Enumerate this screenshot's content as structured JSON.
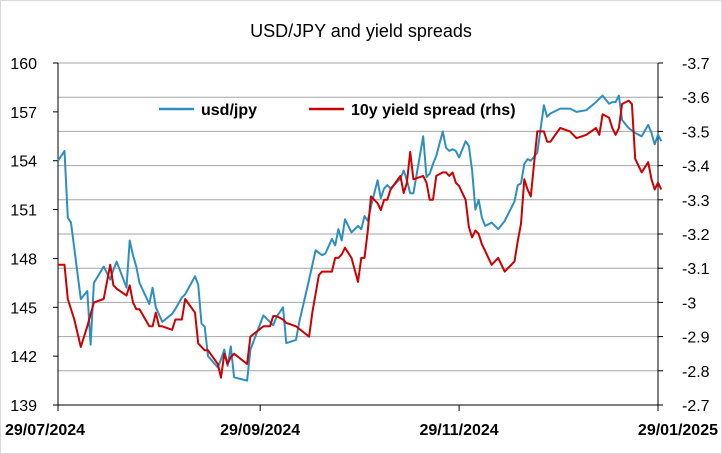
{
  "chart_data": {
    "type": "line",
    "title": "USD/JPY and yield spreads",
    "xlabel": "",
    "ylabel": "",
    "x_tick_labels": [
      "29/07/2024",
      "29/09/2024",
      "29/11/2024",
      "29/01/2025"
    ],
    "x_range": [
      "2024-07-29",
      "2025-01-29"
    ],
    "left_axis": {
      "min": 139,
      "max": 160,
      "ticks": [
        139,
        142,
        145,
        148,
        151,
        154,
        157,
        160
      ]
    },
    "right_axis": {
      "min": -2.7,
      "max": -3.7,
      "reversed": true,
      "ticks": [
        "-2.7",
        "-2.8",
        "-2.9",
        "-3",
        "-3.1",
        "-3.2",
        "-3.3",
        "-3.4",
        "-3.5",
        "-3.6",
        "-3.7"
      ]
    },
    "grid": "horizontal",
    "legend_position": "top",
    "series": [
      {
        "name": "usd/jpy",
        "axis": "left",
        "color": "#2e8fbf",
        "points": [
          [
            "2024-07-29",
            154.0
          ],
          [
            "2024-07-31",
            154.6
          ],
          [
            "2024-08-01",
            150.5
          ],
          [
            "2024-08-02",
            150.2
          ],
          [
            "2024-08-05",
            145.5
          ],
          [
            "2024-08-07",
            146.0
          ],
          [
            "2024-08-08",
            142.7
          ],
          [
            "2024-08-09",
            146.5
          ],
          [
            "2024-08-12",
            147.5
          ],
          [
            "2024-08-14",
            146.7
          ],
          [
            "2024-08-15",
            147.3
          ],
          [
            "2024-08-16",
            147.8
          ],
          [
            "2024-08-19",
            146.2
          ],
          [
            "2024-08-20",
            149.1
          ],
          [
            "2024-08-21",
            148.2
          ],
          [
            "2024-08-22",
            147.5
          ],
          [
            "2024-08-23",
            146.5
          ],
          [
            "2024-08-26",
            145.2
          ],
          [
            "2024-08-27",
            146.2
          ],
          [
            "2024-08-28",
            145.0
          ],
          [
            "2024-08-30",
            144.1
          ],
          [
            "2024-09-02",
            144.6
          ],
          [
            "2024-09-03",
            144.9
          ],
          [
            "2024-09-05",
            145.6
          ],
          [
            "2024-09-06",
            145.8
          ],
          [
            "2024-09-09",
            146.9
          ],
          [
            "2024-09-10",
            146.4
          ],
          [
            "2024-09-11",
            144.0
          ],
          [
            "2024-09-12",
            143.8
          ],
          [
            "2024-09-13",
            142.0
          ],
          [
            "2024-09-16",
            141.3
          ],
          [
            "2024-09-17",
            141.8
          ],
          [
            "2024-09-18",
            142.4
          ],
          [
            "2024-09-19",
            141.4
          ],
          [
            "2024-09-20",
            142.6
          ],
          [
            "2024-09-21",
            140.7
          ],
          [
            "2024-09-25",
            140.5
          ],
          [
            "2024-09-26",
            142.4
          ],
          [
            "2024-09-30",
            144.5
          ],
          [
            "2024-10-02",
            144.1
          ],
          [
            "2024-10-03",
            143.9
          ],
          [
            "2024-10-04",
            144.4
          ],
          [
            "2024-10-06",
            145.0
          ],
          [
            "2024-10-07",
            142.8
          ],
          [
            "2024-10-10",
            143.0
          ],
          [
            "2024-10-11",
            144.1
          ],
          [
            "2024-10-14",
            146.7
          ],
          [
            "2024-10-16",
            148.5
          ],
          [
            "2024-10-18",
            148.2
          ],
          [
            "2024-10-19",
            148.3
          ],
          [
            "2024-10-21",
            149.2
          ],
          [
            "2024-10-22",
            148.8
          ],
          [
            "2024-10-23",
            149.8
          ],
          [
            "2024-10-24",
            149.1
          ],
          [
            "2024-10-25",
            150.4
          ],
          [
            "2024-10-27",
            149.6
          ],
          [
            "2024-10-29",
            150.0
          ],
          [
            "2024-10-30",
            149.8
          ],
          [
            "2024-10-31",
            150.6
          ],
          [
            "2024-11-01",
            150.3
          ],
          [
            "2024-11-02",
            151.2
          ],
          [
            "2024-11-04",
            152.8
          ],
          [
            "2024-11-05",
            151.7
          ],
          [
            "2024-11-06",
            152.3
          ],
          [
            "2024-11-07",
            152.5
          ],
          [
            "2024-11-08",
            152.3
          ],
          [
            "2024-11-11",
            152.9
          ],
          [
            "2024-11-12",
            153.4
          ],
          [
            "2024-11-13",
            152.8
          ],
          [
            "2024-11-14",
            152.0
          ],
          [
            "2024-11-15",
            152.0
          ],
          [
            "2024-11-18",
            155.5
          ],
          [
            "2024-11-19",
            153.0
          ],
          [
            "2024-11-20",
            153.2
          ],
          [
            "2024-11-21",
            153.8
          ],
          [
            "2024-11-22",
            154.3
          ],
          [
            "2024-11-24",
            155.8
          ],
          [
            "2024-11-25",
            154.8
          ],
          [
            "2024-11-26",
            154.6
          ],
          [
            "2024-11-27",
            154.7
          ],
          [
            "2024-11-28",
            154.6
          ],
          [
            "2024-11-29",
            154.2
          ],
          [
            "2024-12-01",
            155.2
          ],
          [
            "2024-12-02",
            154.9
          ],
          [
            "2024-12-03",
            153.4
          ],
          [
            "2024-12-04",
            151.0
          ],
          [
            "2024-12-05",
            151.6
          ],
          [
            "2024-12-06",
            150.5
          ],
          [
            "2024-12-07",
            150.0
          ],
          [
            "2024-12-09",
            150.2
          ],
          [
            "2024-12-11",
            149.8
          ],
          [
            "2024-12-13",
            150.3
          ],
          [
            "2024-12-16",
            151.5
          ],
          [
            "2024-12-17",
            152.5
          ],
          [
            "2024-12-18",
            152.6
          ],
          [
            "2024-12-19",
            153.8
          ],
          [
            "2024-12-20",
            154.1
          ],
          [
            "2024-12-21",
            154.0
          ],
          [
            "2024-12-23",
            154.5
          ],
          [
            "2024-12-25",
            157.4
          ],
          [
            "2024-12-26",
            156.7
          ],
          [
            "2024-12-27",
            156.9
          ],
          [
            "2024-12-30",
            157.2
          ],
          [
            "2025-01-02",
            157.2
          ],
          [
            "2025-01-04",
            157.0
          ],
          [
            "2025-01-07",
            157.1
          ],
          [
            "2025-01-10",
            157.6
          ],
          [
            "2025-01-11",
            157.8
          ],
          [
            "2025-01-12",
            158.0
          ],
          [
            "2025-01-14",
            157.5
          ],
          [
            "2025-01-15",
            157.6
          ],
          [
            "2025-01-16",
            157.6
          ],
          [
            "2025-01-17",
            158.0
          ],
          [
            "2025-01-18",
            156.5
          ],
          [
            "2025-01-20",
            156.0
          ],
          [
            "2025-01-22",
            155.7
          ],
          [
            "2025-01-24",
            155.5
          ],
          [
            "2025-01-26",
            156.2
          ],
          [
            "2025-01-27",
            155.7
          ],
          [
            "2025-01-28",
            155.0
          ],
          [
            "2025-01-29",
            155.6
          ],
          [
            "2025-01-30",
            155.2
          ]
        ]
      },
      {
        "name": "10y yield spread (rhs)",
        "axis": "right",
        "color": "#cc0000",
        "points": [
          [
            "2024-07-29",
            -3.11
          ],
          [
            "2024-07-31",
            -3.11
          ],
          [
            "2024-08-01",
            -3.01
          ],
          [
            "2024-08-03",
            -2.95
          ],
          [
            "2024-08-05",
            -2.87
          ],
          [
            "2024-08-07",
            -2.93
          ],
          [
            "2024-08-09",
            -3.0
          ],
          [
            "2024-08-12",
            -3.01
          ],
          [
            "2024-08-14",
            -3.11
          ],
          [
            "2024-08-15",
            -3.05
          ],
          [
            "2024-08-16",
            -3.04
          ],
          [
            "2024-08-19",
            -3.02
          ],
          [
            "2024-08-20",
            -3.05
          ],
          [
            "2024-08-21",
            -3.0
          ],
          [
            "2024-08-22",
            -2.98
          ],
          [
            "2024-08-23",
            -2.98
          ],
          [
            "2024-08-26",
            -2.93
          ],
          [
            "2024-08-27",
            -2.93
          ],
          [
            "2024-08-28",
            -2.97
          ],
          [
            "2024-08-29",
            -2.93
          ],
          [
            "2024-08-30",
            -2.93
          ],
          [
            "2024-09-02",
            -2.92
          ],
          [
            "2024-09-03",
            -2.95
          ],
          [
            "2024-09-05",
            -2.95
          ],
          [
            "2024-09-06",
            -3.01
          ],
          [
            "2024-09-09",
            -2.97
          ],
          [
            "2024-09-10",
            -2.88
          ],
          [
            "2024-09-11",
            -2.87
          ],
          [
            "2024-09-12",
            -2.86
          ],
          [
            "2024-09-13",
            -2.86
          ],
          [
            "2024-09-16",
            -2.82
          ],
          [
            "2024-09-17",
            -2.78
          ],
          [
            "2024-09-18",
            -2.85
          ],
          [
            "2024-09-19",
            -2.82
          ],
          [
            "2024-09-20",
            -2.84
          ],
          [
            "2024-09-21",
            -2.85
          ],
          [
            "2024-09-25",
            -2.82
          ],
          [
            "2024-09-26",
            -2.9
          ],
          [
            "2024-09-30",
            -2.93
          ],
          [
            "2024-10-02",
            -2.93
          ],
          [
            "2024-10-03",
            -2.96
          ],
          [
            "2024-10-04",
            -2.96
          ],
          [
            "2024-10-06",
            -2.95
          ],
          [
            "2024-10-07",
            -2.94
          ],
          [
            "2024-10-10",
            -2.93
          ],
          [
            "2024-10-14",
            -2.9
          ],
          [
            "2024-10-15",
            -2.97
          ],
          [
            "2024-10-17",
            -3.08
          ],
          [
            "2024-10-18",
            -3.09
          ],
          [
            "2024-10-19",
            -3.09
          ],
          [
            "2024-10-21",
            -3.09
          ],
          [
            "2024-10-22",
            -3.13
          ],
          [
            "2024-10-23",
            -3.13
          ],
          [
            "2024-10-24",
            -3.14
          ],
          [
            "2024-10-25",
            -3.16
          ],
          [
            "2024-10-27",
            -3.13
          ],
          [
            "2024-10-29",
            -3.06
          ],
          [
            "2024-10-30",
            -3.13
          ],
          [
            "2024-10-31",
            -3.13
          ],
          [
            "2024-11-01",
            -3.21
          ],
          [
            "2024-11-02",
            -3.31
          ],
          [
            "2024-11-04",
            -3.29
          ],
          [
            "2024-11-05",
            -3.27
          ],
          [
            "2024-11-06",
            -3.3
          ],
          [
            "2024-11-07",
            -3.3
          ],
          [
            "2024-11-08",
            -3.33
          ],
          [
            "2024-11-11",
            -3.37
          ],
          [
            "2024-11-12",
            -3.32
          ],
          [
            "2024-11-13",
            -3.35
          ],
          [
            "2024-11-14",
            -3.44
          ],
          [
            "2024-11-15",
            -3.36
          ],
          [
            "2024-11-18",
            -3.37
          ],
          [
            "2024-11-19",
            -3.35
          ],
          [
            "2024-11-20",
            -3.3
          ],
          [
            "2024-11-21",
            -3.3
          ],
          [
            "2024-11-22",
            -3.37
          ],
          [
            "2024-11-24",
            -3.38
          ],
          [
            "2024-11-25",
            -3.38
          ],
          [
            "2024-11-26",
            -3.37
          ],
          [
            "2024-11-27",
            -3.38
          ],
          [
            "2024-11-28",
            -3.35
          ],
          [
            "2024-11-29",
            -3.34
          ],
          [
            "2024-12-01",
            -3.3
          ],
          [
            "2024-12-02",
            -3.22
          ],
          [
            "2024-12-03",
            -3.19
          ],
          [
            "2024-12-04",
            -3.21
          ],
          [
            "2024-12-05",
            -3.2
          ],
          [
            "2024-12-06",
            -3.17
          ],
          [
            "2024-12-07",
            -3.15
          ],
          [
            "2024-12-09",
            -3.11
          ],
          [
            "2024-12-11",
            -3.13
          ],
          [
            "2024-12-13",
            -3.09
          ],
          [
            "2024-12-16",
            -3.12
          ],
          [
            "2024-12-17",
            -3.18
          ],
          [
            "2024-12-18",
            -3.23
          ],
          [
            "2024-12-19",
            -3.36
          ],
          [
            "2024-12-20",
            -3.33
          ],
          [
            "2024-12-21",
            -3.31
          ],
          [
            "2024-12-23",
            -3.5
          ],
          [
            "2024-12-25",
            -3.5
          ],
          [
            "2024-12-26",
            -3.47
          ],
          [
            "2024-12-27",
            -3.47
          ],
          [
            "2024-12-30",
            -3.51
          ],
          [
            "2025-01-02",
            -3.5
          ],
          [
            "2025-01-04",
            -3.48
          ],
          [
            "2025-01-07",
            -3.49
          ],
          [
            "2025-01-10",
            -3.51
          ],
          [
            "2025-01-11",
            -3.49
          ],
          [
            "2025-01-12",
            -3.55
          ],
          [
            "2025-01-14",
            -3.54
          ],
          [
            "2025-01-15",
            -3.51
          ],
          [
            "2025-01-16",
            -3.49
          ],
          [
            "2025-01-17",
            -3.51
          ],
          [
            "2025-01-18",
            -3.58
          ],
          [
            "2025-01-20",
            -3.59
          ],
          [
            "2025-01-21",
            -3.58
          ],
          [
            "2025-01-22",
            -3.42
          ],
          [
            "2025-01-24",
            -3.38
          ],
          [
            "2025-01-26",
            -3.41
          ],
          [
            "2025-01-27",
            -3.36
          ],
          [
            "2025-01-28",
            -3.33
          ],
          [
            "2025-01-29",
            -3.35
          ],
          [
            "2025-01-30",
            -3.33
          ]
        ]
      }
    ]
  }
}
